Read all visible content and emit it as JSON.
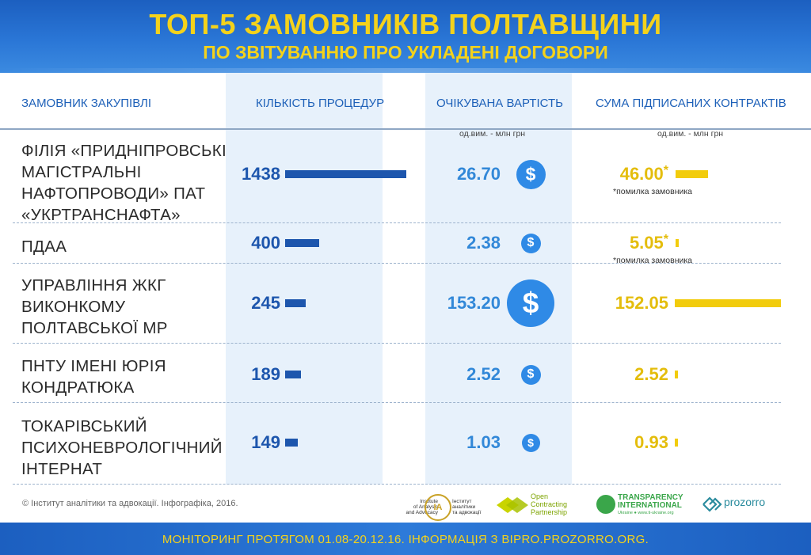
{
  "header": {
    "title": "ТОП-5 ЗАМОВНИКІВ ПОЛТАВЩИНИ",
    "subtitle": "ПО ЗВІТУВАННЮ ПРО УКЛАДЕНІ ДОГОВОРИ"
  },
  "columns": {
    "customer": "ЗАМОВНИК ЗАКУПІВЛІ",
    "procedures": "КІЛЬКІСТЬ ПРОЦЕДУР",
    "expected": "ОЧІКУВАНА ВАРТІСТЬ",
    "signed": "СУМА ПІДПИСАНИХ КОНТРАКТІВ"
  },
  "units": {
    "expected": "од.вим. - млн грн",
    "signed": "од.вим. - млн грн"
  },
  "rows": [
    {
      "name_lines": [
        "ФІЛІЯ «ПРИДНІПРОВСЬКІ",
        "МАГІСТРАЛЬНІ",
        "НАФТОПРОВОДИ» ПАТ",
        "«УКРТРАНСНАФТА»"
      ],
      "procedures": "1438",
      "expected": "26.70",
      "signed": "46.00",
      "signed_mark": "*",
      "note": "*помилка замовника"
    },
    {
      "name_lines": [
        "ПДАА"
      ],
      "procedures": "400",
      "expected": "2.38",
      "signed": "5.05",
      "signed_mark": "*",
      "note": "*помилка замовника"
    },
    {
      "name_lines": [
        "УПРАВЛІННЯ ЖКГ",
        "ВИКОНКОМУ",
        "ПОЛТАВСЬКОЇ МР"
      ],
      "procedures": "245",
      "expected": "153.20",
      "signed": "152.05",
      "signed_mark": "",
      "note": ""
    },
    {
      "name_lines": [
        "ПНТУ ІМЕНІ ЮРІЯ",
        "КОНДРАТЮКА"
      ],
      "procedures": "189",
      "expected": "2.52",
      "signed": "2.52",
      "signed_mark": "",
      "note": ""
    },
    {
      "name_lines": [
        "ТОКАРІВСЬКИЙ",
        "ПСИХОНЕВРОЛОГІЧНИЙ",
        "ІНТЕРНАТ"
      ],
      "procedures": "149",
      "expected": "1.03",
      "signed": "0.93",
      "signed_mark": "",
      "note": ""
    }
  ],
  "coin_symbol": "$",
  "colors": {
    "procedures_bar": "#1d56ad",
    "signed_bar": "#f2cc0c",
    "coin": "#2f8ae6",
    "title": "#f4d21b"
  },
  "credit": "© Інститут аналітики та адвокації. Інфографіка, 2016.",
  "logos": {
    "iaa_left": [
      "Institute",
      "of Analysis",
      "and Advocacy"
    ],
    "iaa_mark": "ІА",
    "iaa_right": [
      "Інститут",
      "аналітики",
      "та адвокації"
    ],
    "ocp": [
      "Open",
      "Contracting",
      "Partnership"
    ],
    "ti_name": [
      "TRANSPARENCY",
      "INTERNATIONAL"
    ],
    "ti_sub": "Ukraine  ●  www.ti-ukraine.org",
    "prozorro": "prozorro"
  },
  "footer": "МОНІТОРИНГ ПРОТЯГОМ 01.08-20.12.16. ІНФОРМАЦІЯ З BIPRO.PROZORRO.ORG.",
  "chart_data": {
    "type": "table",
    "title": "ТОП-5 ЗАМОВНИКІВ ПОЛТАВЩИНИ",
    "subtitle": "ПО ЗВІТУВАННЮ ПРО УКЛАДЕНІ ДОГОВОРИ",
    "categories": [
      "ФІЛІЯ «ПРИДНІПРОВСЬКІ МАГІСТРАЛЬНІ НАФТОПРОВОДИ» ПАТ «УКРТРАНСНАФТА»",
      "ПДАА",
      "УПРАВЛІННЯ ЖКГ ВИКОНКОМУ ПОЛТАВСЬКОЇ МР",
      "ПНТУ ІМЕНІ ЮРІЯ КОНДРАТЮКА",
      "ТОКАРІВСЬКИЙ ПСИХОНЕВРОЛОГІЧНИЙ ІНТЕРНАТ"
    ],
    "series": [
      {
        "name": "КІЛЬКІСТЬ ПРОЦЕДУР",
        "values": [
          1438,
          400,
          245,
          189,
          149
        ]
      },
      {
        "name": "ОЧІКУВАНА ВАРТІСТЬ",
        "values": [
          26.7,
          2.38,
          153.2,
          2.52,
          1.03
        ]
      },
      {
        "name": "СУМА ПІДПИСАНИХ КОНТРАКТІВ",
        "values": [
          46.0,
          5.05,
          152.05,
          2.52,
          0.93
        ]
      }
    ]
  }
}
